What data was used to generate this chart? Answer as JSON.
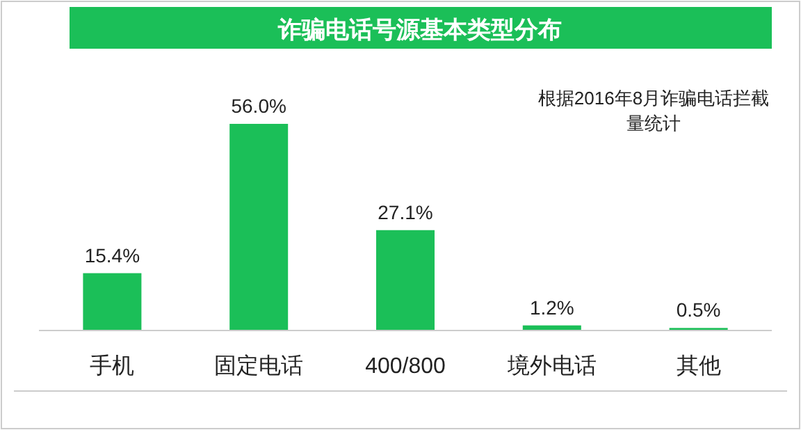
{
  "chart_data": {
    "type": "bar",
    "title": "诈骗电话号源基本类型分布",
    "categories": [
      "手机",
      "固定电话",
      "400/800",
      "境外电话",
      "其他"
    ],
    "values": [
      15.4,
      56.0,
      27.1,
      1.2,
      0.5
    ],
    "value_labels": [
      "15.4%",
      "56.0%",
      "27.1%",
      "1.2%",
      "0.5%"
    ],
    "color": "#1bbf58",
    "annotations": [
      "根据2016年8月诈骗电话拦截量统计"
    ]
  }
}
